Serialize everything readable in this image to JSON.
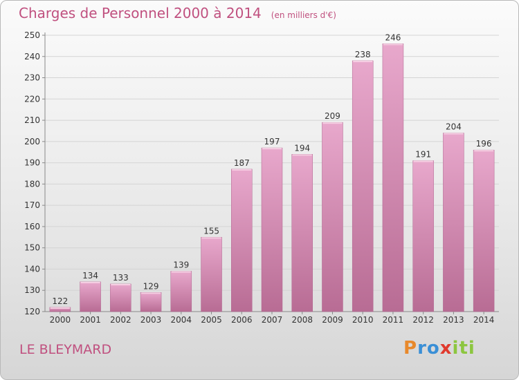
{
  "title": "Charges de Personnel 2000 à 2014",
  "unit_note": "(en milliers d'€)",
  "commune": "LE BLEYMARD",
  "logo": {
    "text": "Proxiti",
    "letters": [
      {
        "ch": "P",
        "color": "#e8892b"
      },
      {
        "ch": "r",
        "color": "#3a8fd6"
      },
      {
        "ch": "o",
        "color": "#3a8fd6"
      },
      {
        "ch": "x",
        "color": "#e03a2e"
      },
      {
        "ch": "i",
        "color": "#8cc63f"
      },
      {
        "ch": "t",
        "color": "#8cc63f"
      },
      {
        "ch": "i",
        "color": "#8cc63f"
      }
    ]
  },
  "colors": {
    "accent": "#c0507f",
    "bar_top": "#e8a8cc",
    "bar_bottom": "#b86c94",
    "grid": "#d4d4d4"
  },
  "chart_data": {
    "type": "bar",
    "title": "Charges de Personnel 2000 à 2014",
    "subtitle": "(en milliers d'€)",
    "xlabel": "",
    "ylabel": "",
    "categories": [
      "2000",
      "2001",
      "2002",
      "2003",
      "2004",
      "2005",
      "2006",
      "2007",
      "2008",
      "2009",
      "2010",
      "2011",
      "2012",
      "2013",
      "2014"
    ],
    "values": [
      122,
      134,
      133,
      129,
      139,
      155,
      187,
      197,
      194,
      209,
      238,
      246,
      191,
      204,
      196
    ],
    "ylim": [
      120,
      250
    ],
    "yticks": [
      120,
      130,
      140,
      150,
      160,
      170,
      180,
      190,
      200,
      210,
      220,
      230,
      240,
      250
    ],
    "grid": true,
    "legend": "none"
  }
}
